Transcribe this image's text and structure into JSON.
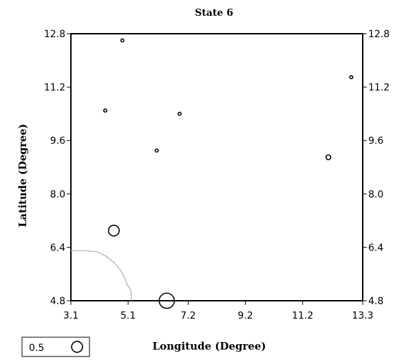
{
  "chart_data": {
    "type": "scatter",
    "title": "State 6",
    "xlabel": "Longitude (Degree)",
    "ylabel": "Latitude (Degree)",
    "xlim": [
      3.1,
      13.3
    ],
    "ylim": [
      4.8,
      12.8
    ],
    "x_ticks": [
      "3.1",
      "5.1",
      "7.2",
      "9.2",
      "11.2",
      "13.3"
    ],
    "x_tick_values": [
      3.1,
      5.1,
      7.2,
      9.2,
      11.2,
      13.3
    ],
    "y_ticks": [
      "4.8",
      "6.4",
      "8.0",
      "9.6",
      "11.2",
      "12.8"
    ],
    "y_tick_values": [
      4.8,
      6.4,
      8.0,
      9.6,
      11.2,
      12.8
    ],
    "grid": false,
    "series": [
      {
        "marker": "circle",
        "points": [
          {
            "x": 4.9,
            "y": 12.6,
            "size": 0.02
          },
          {
            "x": 4.3,
            "y": 10.5,
            "size": 0.02
          },
          {
            "x": 6.9,
            "y": 10.4,
            "size": 0.02
          },
          {
            "x": 6.1,
            "y": 9.3,
            "size": 0.02
          },
          {
            "x": 12.1,
            "y": 9.1,
            "size": 0.05
          },
          {
            "x": 12.9,
            "y": 11.5,
            "size": 0.02
          },
          {
            "x": 4.6,
            "y": 6.9,
            "size": 0.25
          },
          {
            "x": 6.45,
            "y": 4.8,
            "size": 0.5
          }
        ]
      }
    ],
    "coastline": [
      [
        3.1,
        6.3
      ],
      [
        3.6,
        6.3
      ],
      [
        4.0,
        6.27
      ],
      [
        4.3,
        6.15
      ],
      [
        4.6,
        5.95
      ],
      [
        4.85,
        5.7
      ],
      [
        5.0,
        5.45
      ],
      [
        5.05,
        5.3
      ],
      [
        5.15,
        5.18
      ],
      [
        5.2,
        5.1
      ],
      [
        5.22,
        4.8
      ]
    ],
    "legend": {
      "position": "bottom-left",
      "label": "0.5",
      "size": 0.5
    },
    "colors": {
      "marker": "#000000",
      "coastline": "#aaaaaa",
      "axes": "#000000"
    }
  }
}
